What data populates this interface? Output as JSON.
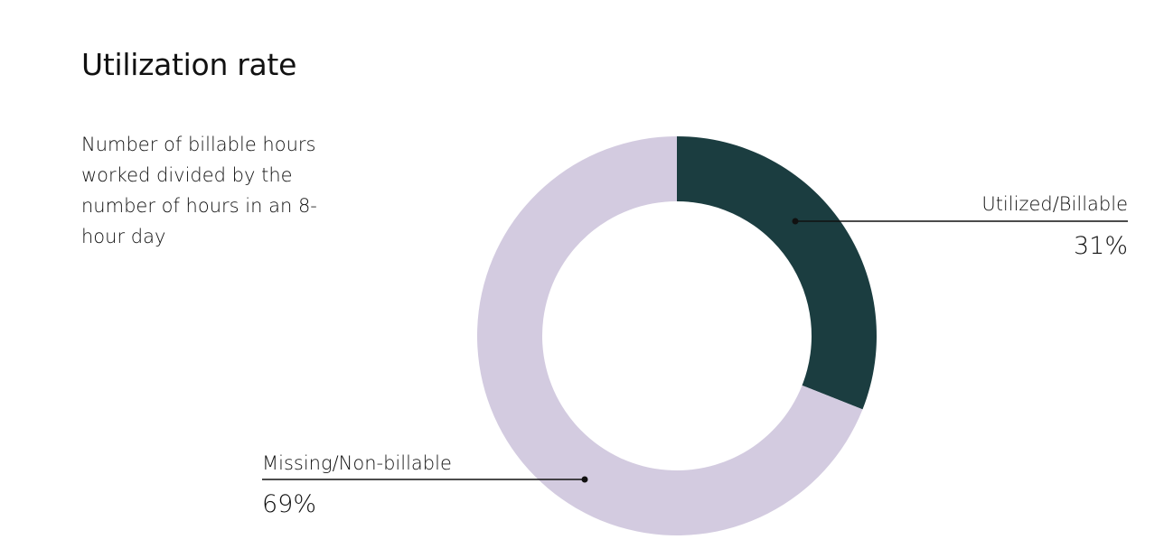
{
  "chart_data": {
    "type": "pie",
    "donut": true,
    "title": "Utilization rate",
    "subtitle": "Number of billable hours worked divided by the number of hours in an 8-hour day",
    "categories": [
      "Utilized/Billable",
      "Missing/Non-billable"
    ],
    "values": [
      31,
      69
    ],
    "value_labels": [
      "31%",
      "69%"
    ],
    "colors": [
      "#1b3d40",
      "#d3cbe0"
    ]
  }
}
